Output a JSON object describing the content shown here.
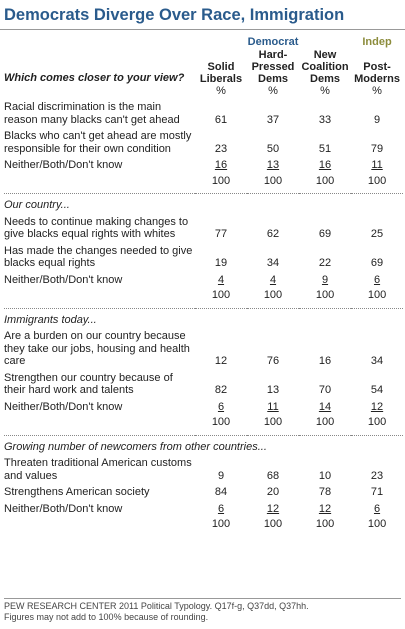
{
  "header": {
    "title": "Democrats Diverge Over Race, Immigration"
  },
  "table": {
    "groups": [
      "Democrat",
      "Indep"
    ],
    "columns": [
      "Solid Liberals",
      "Hard-Pressed Dems",
      "New Coalition Dems",
      "Post-Moderns"
    ],
    "question": "Which comes closer to your view?",
    "units": [
      "%",
      "%",
      "%",
      "%"
    ],
    "sections": [
      {
        "rows": [
          {
            "label": "Racial discrimination is the main reason many blacks can't get ahead",
            "values": [
              61,
              37,
              33,
              9
            ]
          },
          {
            "label": "Blacks who can't get ahead are mostly responsible for their own condition",
            "values": [
              23,
              50,
              51,
              79
            ]
          },
          {
            "label": "Neither/Both/Don't know",
            "values": [
              16,
              13,
              16,
              11
            ]
          }
        ],
        "totals": [
          100,
          100,
          100,
          100
        ]
      },
      {
        "heading": "Our country...",
        "rows": [
          {
            "label": "Needs to continue making changes to give blacks equal rights with whites",
            "values": [
              77,
              62,
              69,
              25
            ]
          },
          {
            "label": "Has made the changes needed to give blacks equal rights",
            "values": [
              19,
              34,
              22,
              69
            ]
          },
          {
            "label": "Neither/Both/Don't know",
            "values": [
              4,
              4,
              9,
              6
            ]
          }
        ],
        "totals": [
          100,
          100,
          100,
          100
        ]
      },
      {
        "heading": "Immigrants today...",
        "rows": [
          {
            "label": "Are a burden on our country because they take our jobs, housing and health care",
            "values": [
              12,
              76,
              16,
              34
            ]
          },
          {
            "label": "Strengthen our country because of their hard work and talents",
            "values": [
              82,
              13,
              70,
              54
            ]
          },
          {
            "label": "Neither/Both/Don't know",
            "values": [
              6,
              11,
              14,
              12
            ]
          }
        ],
        "totals": [
          100,
          100,
          100,
          100
        ]
      },
      {
        "heading": "Growing number of newcomers from other countries...",
        "rows": [
          {
            "label": "Threaten traditional American customs and values",
            "values": [
              9,
              68,
              10,
              23
            ]
          },
          {
            "label": "Strengthens American society",
            "values": [
              84,
              20,
              78,
              71
            ]
          },
          {
            "label": "Neither/Both/Don't know",
            "values": [
              6,
              12,
              12,
              6
            ]
          }
        ],
        "totals": [
          100,
          100,
          100,
          100
        ]
      }
    ]
  },
  "footer": {
    "source": "PEW RESEARCH CENTER 2011 Political Typology. Q17f-g, Q37dd, Q37hh.",
    "note": "Figures may not add to 100% because of rounding."
  }
}
